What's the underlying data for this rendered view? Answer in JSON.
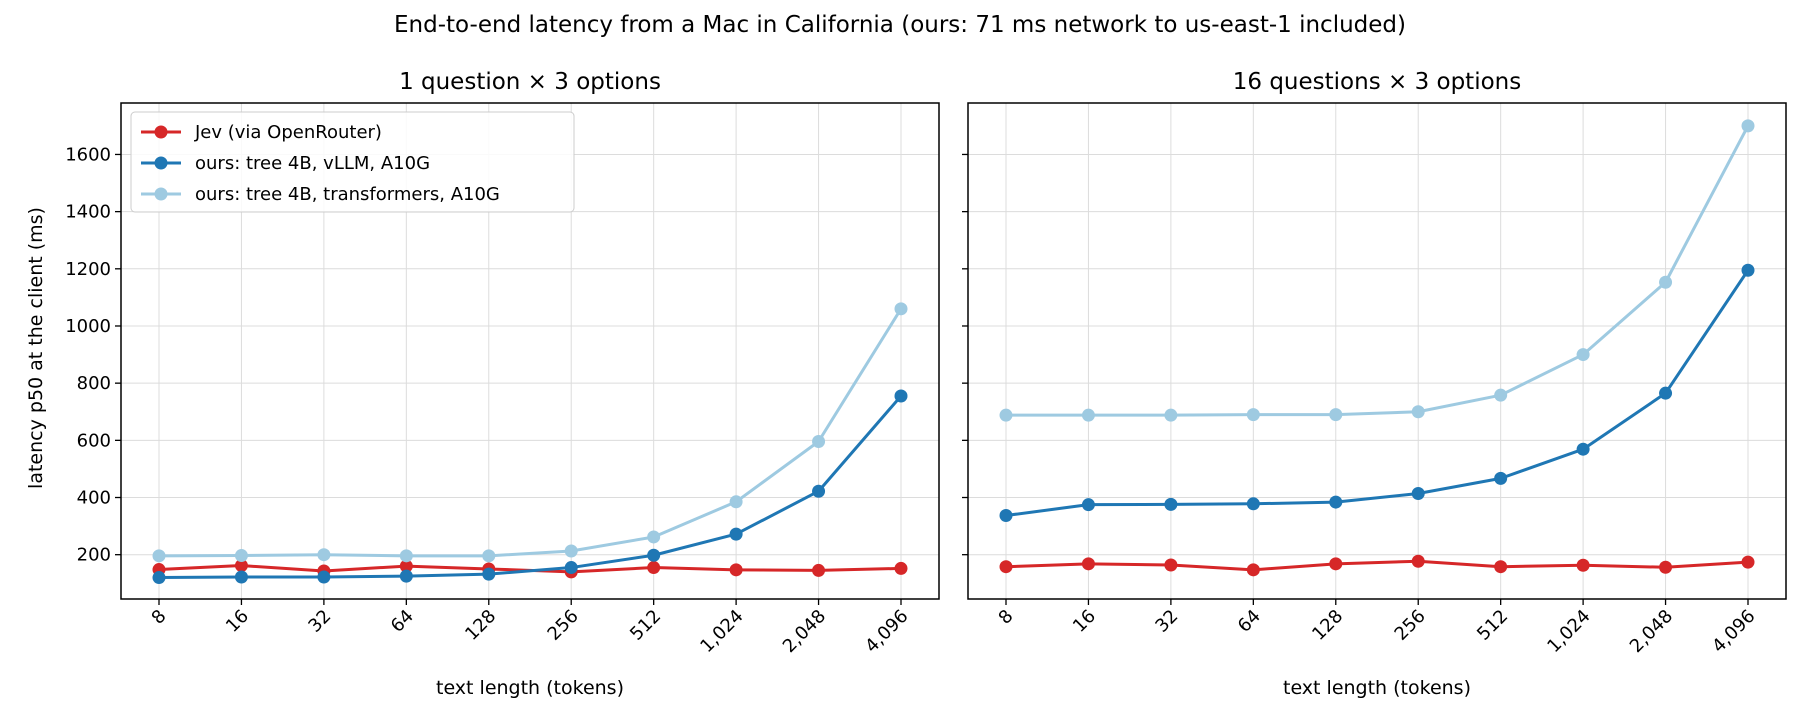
{
  "figure_title": "End-to-end latency from a Mac in California (ours: 71 ms network to us-east-1 included)",
  "chart_data": [
    {
      "type": "line",
      "title": "1 question × 3 options",
      "xlabel": "text length (tokens)",
      "ylabel": "latency p50 at the client (ms)",
      "categories": [
        "8",
        "16",
        "32",
        "64",
        "128",
        "256",
        "512",
        "1,024",
        "2,048",
        "4,096"
      ],
      "ylim": [
        45,
        1780
      ],
      "yticks": [
        "200",
        "400",
        "600",
        "800",
        "1000",
        "1200",
        "1400",
        "1600"
      ],
      "grid": true,
      "legend": "top-left",
      "series": [
        {
          "name": "Jev (via OpenRouter)",
          "color": "#d62728",
          "values": [
            148,
            162,
            143,
            160,
            150,
            140,
            155,
            147,
            145,
            152
          ]
        },
        {
          "name": "ours: tree 4B, vLLM, A10G",
          "color": "#1f77b4",
          "values": [
            120,
            122,
            122,
            125,
            132,
            155,
            198,
            272,
            422,
            755
          ]
        },
        {
          "name": "ours: tree 4B, transformers, A10G",
          "color": "#9ecae1",
          "values": [
            196,
            197,
            200,
            196,
            196,
            213,
            262,
            385,
            596,
            1060
          ]
        }
      ]
    },
    {
      "type": "line",
      "title": "16 questions × 3 options",
      "xlabel": "text length (tokens)",
      "categories": [
        "8",
        "16",
        "32",
        "64",
        "128",
        "256",
        "512",
        "1,024",
        "2,048",
        "4,096"
      ],
      "ylim": [
        45,
        1780
      ],
      "grid": true,
      "series": [
        {
          "name": "Jev (via OpenRouter)",
          "color": "#d62728",
          "values": [
            158,
            168,
            164,
            147,
            168,
            177,
            158,
            163,
            156,
            174
          ]
        },
        {
          "name": "ours: tree 4B, vLLM, A10G",
          "color": "#1f77b4",
          "values": [
            337,
            375,
            376,
            378,
            384,
            414,
            467,
            569,
            765,
            1195
          ]
        },
        {
          "name": "ours: tree 4B, transformers, A10G",
          "color": "#9ecae1",
          "values": [
            688,
            688,
            688,
            690,
            690,
            700,
            758,
            900,
            1153,
            1700
          ]
        }
      ]
    }
  ]
}
